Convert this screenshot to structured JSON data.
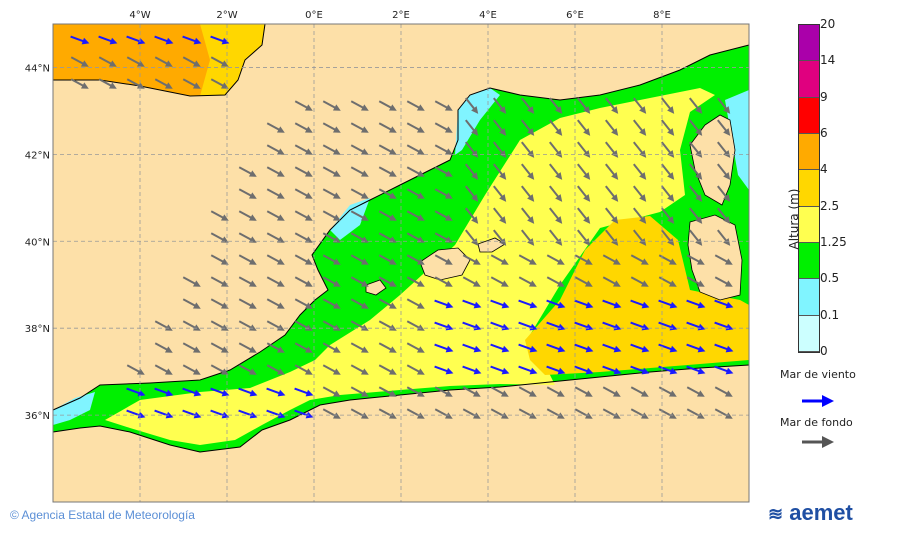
{
  "map": {
    "lon_ticks": [
      "4°W",
      "2°W",
      "0°E",
      "2°E",
      "4°E",
      "6°E",
      "8°E"
    ],
    "lat_ticks": [
      "44°N",
      "42°N",
      "40°N",
      "38°N",
      "36°N"
    ],
    "extent": {
      "lon": [
        -6,
        10
      ],
      "lat": [
        34,
        45
      ]
    },
    "land_color": "#fde0a8",
    "grid": true
  },
  "colorbar": {
    "title": "Altura (m)",
    "levels": [
      "20",
      "14",
      "9",
      "6",
      "4",
      "2.5",
      "1.25",
      "0.5",
      "0.1",
      "0"
    ],
    "colors": [
      "#aa00aa",
      "#e0007f",
      "#ff0000",
      "#ffaa00",
      "#ffd700",
      "#ffff50",
      "#00f000",
      "#80f4ff",
      "#ccffff"
    ]
  },
  "legend": {
    "wind_sea": {
      "label": "Mar de viento",
      "color": "#0000ff"
    },
    "swell": {
      "label": "Mar de fondo",
      "color": "#555555"
    }
  },
  "footer": {
    "credit": "© Agencia Estatal de Meteorología",
    "logo": "aemet"
  }
}
